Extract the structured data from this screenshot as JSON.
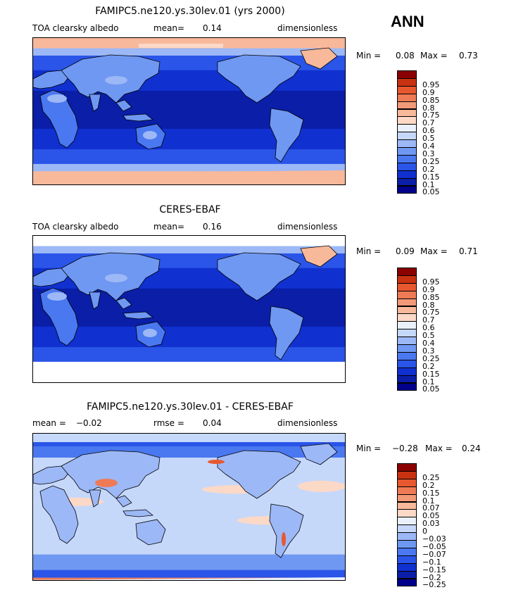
{
  "season": "ANN",
  "panels": [
    {
      "title": "FAMIPC5.ne120.ys.30lev.01 (yrs 2000)",
      "left_label": "TOA clearsky albedo",
      "mid_label": "mean=",
      "mid_value": "0.14",
      "right_label": "dimensionless",
      "min_label": "Min =",
      "min_value": "0.08",
      "max_label": "Max =",
      "max_value": "0.73",
      "map_type": "abs"
    },
    {
      "title": "CERES-EBAF",
      "left_label": "TOA clearsky albedo",
      "mid_label": "mean=",
      "mid_value": "0.16",
      "right_label": "dimensionless",
      "min_label": "Min =",
      "min_value": "0.09",
      "max_label": "Max =",
      "max_value": "0.71",
      "map_type": "abs"
    },
    {
      "title": "FAMIPC5.ne120.ys.30lev.01 - CERES-EBAF",
      "left_label": "mean =",
      "left_value": "−0.02",
      "mid_label": "rmse =",
      "mid_value": "0.04",
      "right_label": "dimensionless",
      "min_label": "Min =",
      "min_value": "−0.28",
      "max_label": "Max =",
      "max_value": "0.24",
      "map_type": "diff"
    }
  ],
  "chart_data": [
    {
      "type": "heatmap",
      "title": "FAMIPC5.ne120.ys.30lev.01 (yrs 2000)",
      "variable": "TOA clearsky albedo",
      "units": "dimensionless",
      "mean": 0.14,
      "min": 0.08,
      "max": 0.73,
      "colorbar_levels": [
        "0.05",
        "0.1",
        "0.15",
        "0.2",
        "0.25",
        "0.3",
        "0.4",
        "0.5",
        "0.6",
        "0.7",
        "0.75",
        "0.8",
        "0.85",
        "0.9",
        "0.95"
      ]
    },
    {
      "type": "heatmap",
      "title": "CERES-EBAF",
      "variable": "TOA clearsky albedo",
      "units": "dimensionless",
      "mean": 0.16,
      "min": 0.09,
      "max": 0.71,
      "colorbar_levels": [
        "0.05",
        "0.1",
        "0.15",
        "0.2",
        "0.25",
        "0.3",
        "0.4",
        "0.5",
        "0.6",
        "0.7",
        "0.75",
        "0.8",
        "0.85",
        "0.9",
        "0.95"
      ]
    },
    {
      "type": "heatmap",
      "title": "FAMIPC5.ne120.ys.30lev.01 - CERES-EBAF",
      "units": "dimensionless",
      "mean": -0.02,
      "rmse": 0.04,
      "min": -0.28,
      "max": 0.24,
      "colorbar_levels": [
        "−0.25",
        "−0.2",
        "−0.15",
        "−0.1",
        "−0.07",
        "−0.05",
        "−0.03",
        "0",
        "0.03",
        "0.05",
        "0.07",
        "0.1",
        "0.15",
        "0.2",
        "0.25"
      ]
    }
  ],
  "colors": {
    "scale16": [
      "#00008b",
      "#0a1ea8",
      "#1030d0",
      "#2a55e8",
      "#4a78f0",
      "#6f98f2",
      "#9cb8f6",
      "#c6d8fa",
      "#eaf1fc",
      "#fcd8c6",
      "#f8b89a",
      "#f29a78",
      "#ee7a56",
      "#e8582e",
      "#c83210",
      "#8b0000"
    ]
  }
}
